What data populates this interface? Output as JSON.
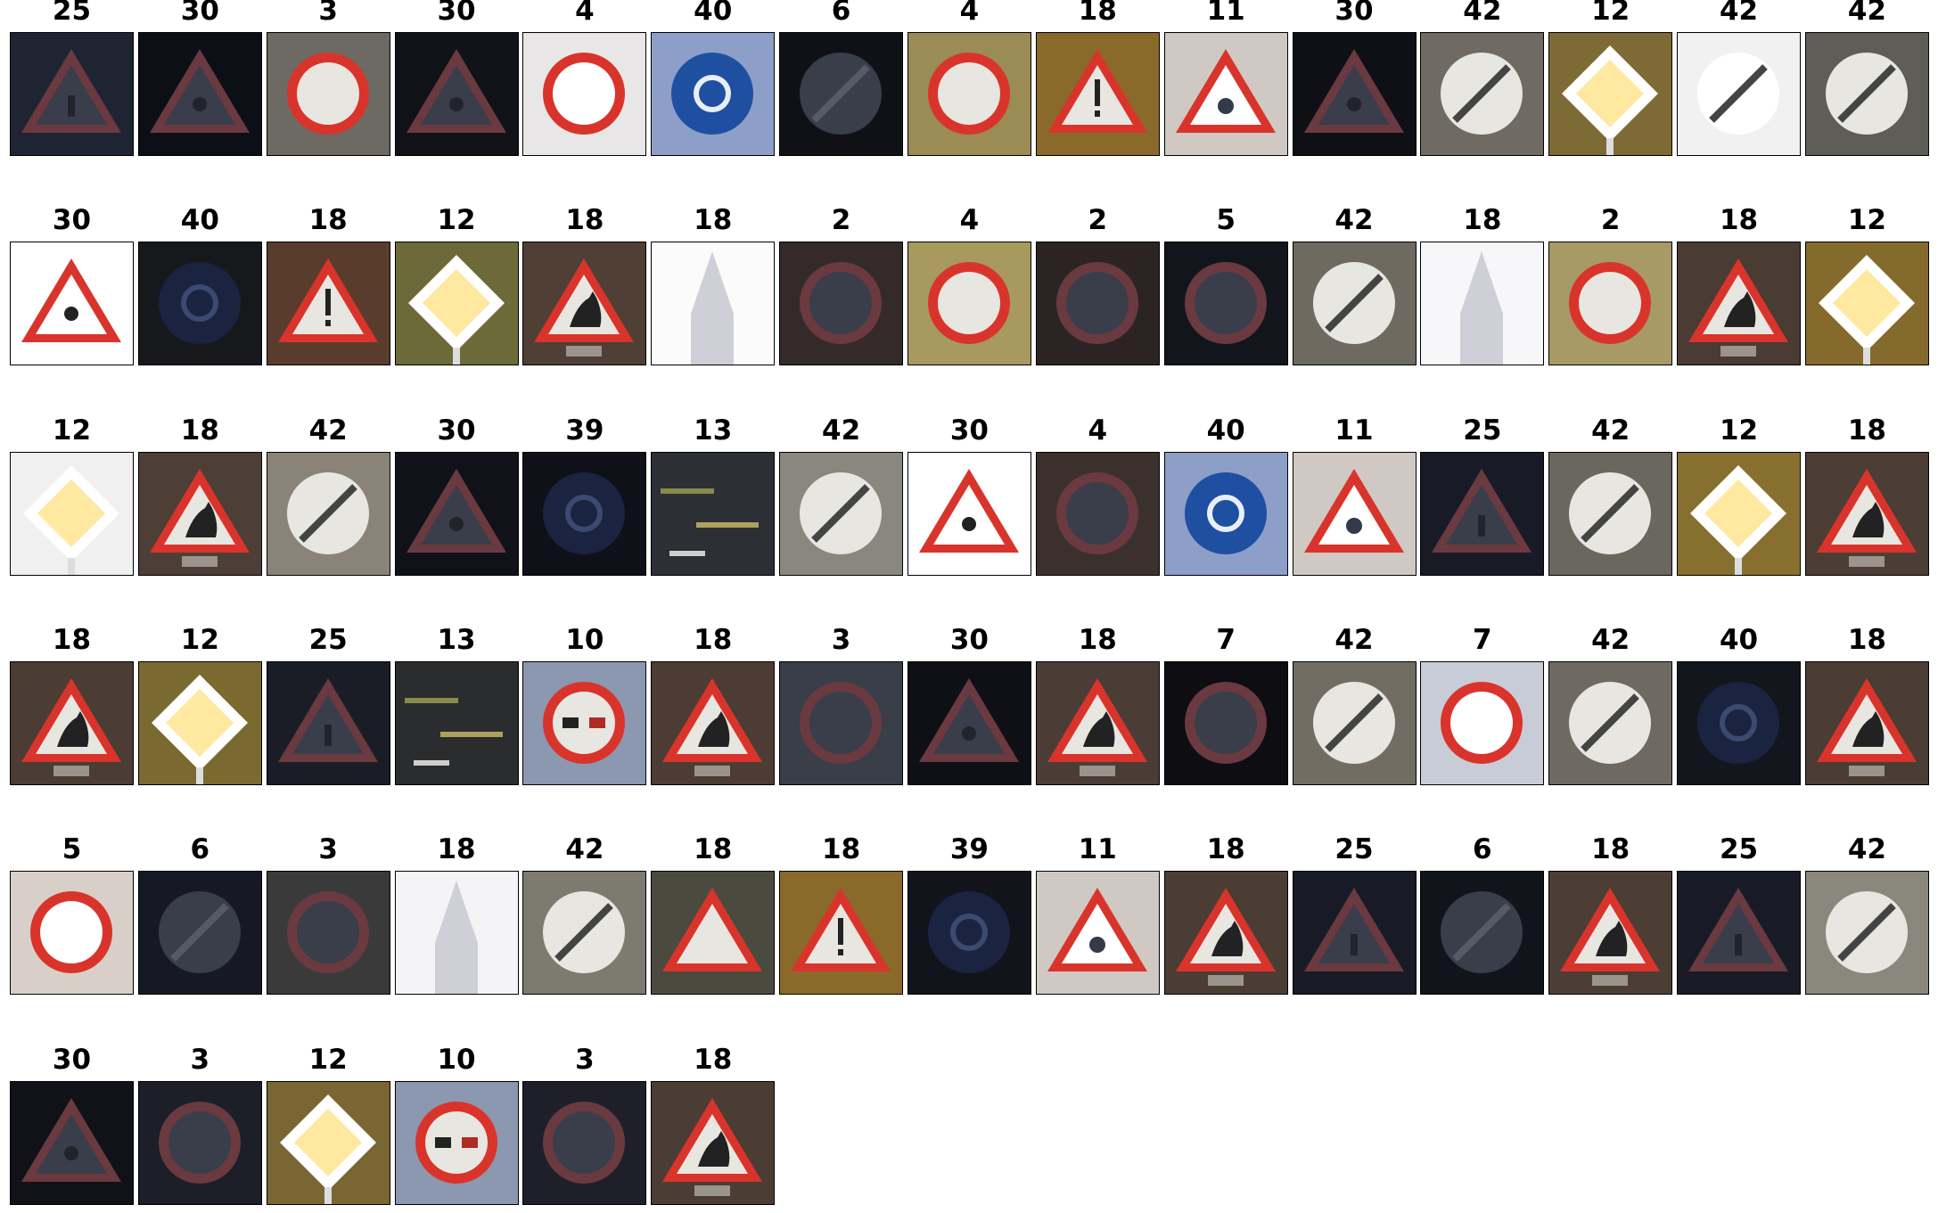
{
  "figure": {
    "rows": [
      [
        {
          "label": "25",
          "sign": "triangle",
          "bg": "#1f2433",
          "tone": "dark",
          "glyph": "worker"
        },
        {
          "label": "30",
          "sign": "triangle",
          "bg": "#0d0f16",
          "tone": "dark",
          "glyph": "snow"
        },
        {
          "label": "3",
          "sign": "round-red",
          "bg": "#6c6a63",
          "tone": "mid",
          "glyph": "60"
        },
        {
          "label": "30",
          "sign": "triangle",
          "bg": "#111218",
          "tone": "dark",
          "glyph": "snow"
        },
        {
          "label": "4",
          "sign": "round-red",
          "bg": "#e9e6e8",
          "tone": "light",
          "glyph": "70"
        },
        {
          "label": "40",
          "sign": "round-blue",
          "bg": "#8d9fc8",
          "tone": "mid",
          "glyph": "roundabout"
        },
        {
          "label": "6",
          "sign": "round-end",
          "bg": "#0f1116",
          "tone": "dark",
          "glyph": "end"
        },
        {
          "label": "4",
          "sign": "round-red",
          "bg": "#9b8b54",
          "tone": "mid",
          "glyph": "70"
        },
        {
          "label": "18",
          "sign": "triangle",
          "bg": "#8a6a2a",
          "tone": "mid",
          "glyph": "!"
        },
        {
          "label": "11",
          "sign": "triangle",
          "bg": "#cfc8c3",
          "tone": "light",
          "glyph": "priority"
        },
        {
          "label": "30",
          "sign": "triangle",
          "bg": "#0f1016",
          "tone": "dark",
          "glyph": "snow"
        },
        {
          "label": "42",
          "sign": "round-end",
          "bg": "#706b62",
          "tone": "mid",
          "glyph": "end-overtaking"
        },
        {
          "label": "12",
          "sign": "diamond",
          "bg": "#7d6a34",
          "tone": "mid",
          "glyph": ""
        },
        {
          "label": "42",
          "sign": "round-end",
          "bg": "#f1f1f1",
          "tone": "light",
          "glyph": "end-overtaking"
        },
        {
          "label": "42",
          "sign": "round-end",
          "bg": "#5f5d58",
          "tone": "mid",
          "glyph": "end-overtaking"
        }
      ],
      [
        {
          "label": "30",
          "sign": "triangle",
          "bg": "#ffffff",
          "tone": "light",
          "glyph": "snow"
        },
        {
          "label": "40",
          "sign": "round-blue",
          "bg": "#16181c",
          "tone": "dark",
          "glyph": "roundabout"
        },
        {
          "label": "18",
          "sign": "triangle",
          "bg": "#5a3c2c",
          "tone": "mid",
          "glyph": "!"
        },
        {
          "label": "12",
          "sign": "diamond",
          "bg": "#6d6a3a",
          "tone": "mid",
          "glyph": ""
        },
        {
          "label": "18",
          "sign": "triangle",
          "bg": "#4f3f35",
          "tone": "mid",
          "glyph": "animal"
        },
        {
          "label": "18",
          "sign": "post",
          "bg": "#fbfbfb",
          "tone": "light",
          "glyph": ""
        },
        {
          "label": "2",
          "sign": "round-red",
          "bg": "#352a2a",
          "tone": "dark",
          "glyph": "50"
        },
        {
          "label": "4",
          "sign": "round-red",
          "bg": "#a89a5f",
          "tone": "mid",
          "glyph": "70"
        },
        {
          "label": "2",
          "sign": "round-red",
          "bg": "#2c2424",
          "tone": "dark",
          "glyph": "50"
        },
        {
          "label": "5",
          "sign": "round-red",
          "bg": "#13151c",
          "tone": "dark",
          "glyph": "80"
        },
        {
          "label": "42",
          "sign": "round-end",
          "bg": "#6e6a60",
          "tone": "mid",
          "glyph": "end-overtaking"
        },
        {
          "label": "18",
          "sign": "post",
          "bg": "#f7f7f9",
          "tone": "light",
          "glyph": ""
        },
        {
          "label": "2",
          "sign": "round-red",
          "bg": "#a89a66",
          "tone": "mid",
          "glyph": "50"
        },
        {
          "label": "18",
          "sign": "triangle",
          "bg": "#4a3b33",
          "tone": "mid",
          "glyph": "animal"
        },
        {
          "label": "12",
          "sign": "diamond",
          "bg": "#846b2c",
          "tone": "mid",
          "glyph": ""
        }
      ],
      [
        {
          "label": "12",
          "sign": "diamond-side",
          "bg": "#f0f0f0",
          "tone": "light",
          "glyph": ""
        },
        {
          "label": "18",
          "sign": "triangle",
          "bg": "#4d3e36",
          "tone": "mid",
          "glyph": "animal"
        },
        {
          "label": "42",
          "sign": "round-end",
          "bg": "#8a8478",
          "tone": "mid",
          "glyph": "end-overtaking"
        },
        {
          "label": "30",
          "sign": "triangle",
          "bg": "#111219",
          "tone": "dark",
          "glyph": "snow"
        },
        {
          "label": "39",
          "sign": "round-blue",
          "bg": "#0f1018",
          "tone": "dark",
          "glyph": "keep-left"
        },
        {
          "label": "13",
          "sign": "streaks",
          "bg": "#2c2f33",
          "tone": "dark",
          "glyph": ""
        },
        {
          "label": "42",
          "sign": "round-end",
          "bg": "#8a877e",
          "tone": "mid",
          "glyph": "end-overtaking"
        },
        {
          "label": "30",
          "sign": "triangle",
          "bg": "#ffffff",
          "tone": "light",
          "glyph": "snow"
        },
        {
          "label": "4",
          "sign": "round-red",
          "bg": "#3c302c",
          "tone": "dark",
          "glyph": "70"
        },
        {
          "label": "40",
          "sign": "round-blue",
          "bg": "#8d9fc8",
          "tone": "mid",
          "glyph": "roundabout"
        },
        {
          "label": "11",
          "sign": "triangle",
          "bg": "#cfc8c3",
          "tone": "light",
          "glyph": "priority"
        },
        {
          "label": "25",
          "sign": "triangle",
          "bg": "#181b26",
          "tone": "dark",
          "glyph": "worker"
        },
        {
          "label": "42",
          "sign": "round-end",
          "bg": "#6a675e",
          "tone": "mid",
          "glyph": "end-overtaking"
        },
        {
          "label": "12",
          "sign": "diamond",
          "bg": "#87702f",
          "tone": "mid",
          "glyph": ""
        },
        {
          "label": "18",
          "sign": "triangle",
          "bg": "#4c3d35",
          "tone": "mid",
          "glyph": "animal"
        }
      ],
      [
        {
          "label": "18",
          "sign": "triangle",
          "bg": "#4b3c34",
          "tone": "mid",
          "glyph": "animal"
        },
        {
          "label": "12",
          "sign": "diamond",
          "bg": "#7a6a30",
          "tone": "mid",
          "glyph": ""
        },
        {
          "label": "25",
          "sign": "triangle",
          "bg": "#1b1d26",
          "tone": "dark",
          "glyph": "worker"
        },
        {
          "label": "13",
          "sign": "streaks",
          "bg": "#2a2c2d",
          "tone": "dark",
          "glyph": ""
        },
        {
          "label": "10",
          "sign": "round-red",
          "bg": "#8c97b0",
          "tone": "mid",
          "glyph": "no-overtaking"
        },
        {
          "label": "18",
          "sign": "triangle",
          "bg": "#4d3c33",
          "tone": "mid",
          "glyph": "animal"
        },
        {
          "label": "3",
          "sign": "round-red",
          "bg": "#3a3e48",
          "tone": "dark",
          "glyph": "60"
        },
        {
          "label": "30",
          "sign": "triangle",
          "bg": "#0f1016",
          "tone": "dark",
          "glyph": "snow"
        },
        {
          "label": "18",
          "sign": "triangle",
          "bg": "#4b3d35",
          "tone": "mid",
          "glyph": "animal"
        },
        {
          "label": "7",
          "sign": "round-red",
          "bg": "#0d0d12",
          "tone": "dark",
          "glyph": "100"
        },
        {
          "label": "42",
          "sign": "round-end",
          "bg": "#726d62",
          "tone": "mid",
          "glyph": "end-overtaking"
        },
        {
          "label": "7",
          "sign": "round-red",
          "bg": "#c8ccd6",
          "tone": "light",
          "glyph": "100"
        },
        {
          "label": "42",
          "sign": "round-end",
          "bg": "#6e6a61",
          "tone": "mid",
          "glyph": "end-overtaking"
        },
        {
          "label": "40",
          "sign": "round-blue",
          "bg": "#14161d",
          "tone": "dark",
          "glyph": "roundabout"
        },
        {
          "label": "18",
          "sign": "triangle",
          "bg": "#4b3c34",
          "tone": "mid",
          "glyph": "animal"
        }
      ],
      [
        {
          "label": "5",
          "sign": "round-red",
          "bg": "#d8d0c8",
          "tone": "light",
          "glyph": "80"
        },
        {
          "label": "6",
          "sign": "round-end",
          "bg": "#161923",
          "tone": "dark",
          "glyph": "end"
        },
        {
          "label": "3",
          "sign": "round-red",
          "bg": "#3b3a3a",
          "tone": "dark",
          "glyph": "60"
        },
        {
          "label": "18",
          "sign": "post",
          "bg": "#f4f4f6",
          "tone": "light",
          "glyph": ""
        },
        {
          "label": "42",
          "sign": "round-end",
          "bg": "#7d7a70",
          "tone": "mid",
          "glyph": "end-overtaking"
        },
        {
          "label": "18",
          "sign": "triangle",
          "bg": "#4b4a3e",
          "tone": "mid",
          "glyph": ""
        },
        {
          "label": "18",
          "sign": "triangle",
          "bg": "#8a6a2a",
          "tone": "mid",
          "glyph": "!"
        },
        {
          "label": "39",
          "sign": "round-blue",
          "bg": "#12131b",
          "tone": "dark",
          "glyph": "keep-left"
        },
        {
          "label": "11",
          "sign": "triangle",
          "bg": "#d0c9c3",
          "tone": "light",
          "glyph": "priority"
        },
        {
          "label": "18",
          "sign": "triangle",
          "bg": "#4b3c34",
          "tone": "mid",
          "glyph": "animal"
        },
        {
          "label": "25",
          "sign": "triangle",
          "bg": "#181b25",
          "tone": "dark",
          "glyph": "worker"
        },
        {
          "label": "6",
          "sign": "round-end",
          "bg": "#12141b",
          "tone": "dark",
          "glyph": "end"
        },
        {
          "label": "18",
          "sign": "triangle",
          "bg": "#4c3d35",
          "tone": "mid",
          "glyph": "animal"
        },
        {
          "label": "25",
          "sign": "triangle",
          "bg": "#181b26",
          "tone": "dark",
          "glyph": "worker"
        },
        {
          "label": "42",
          "sign": "round-end",
          "bg": "#8a877c",
          "tone": "mid",
          "glyph": "end-overtaking"
        }
      ],
      [
        {
          "label": "30",
          "sign": "triangle",
          "bg": "#111218",
          "tone": "dark",
          "glyph": "snow"
        },
        {
          "label": "3",
          "sign": "round-red",
          "bg": "#1c1e28",
          "tone": "dark",
          "glyph": "60"
        },
        {
          "label": "12",
          "sign": "diamond",
          "bg": "#7a6632",
          "tone": "mid",
          "glyph": ""
        },
        {
          "label": "10",
          "sign": "round-red",
          "bg": "#8c97b0",
          "tone": "mid",
          "glyph": "no-overtaking"
        },
        {
          "label": "3",
          "sign": "round-red",
          "bg": "#1e1f29",
          "tone": "dark",
          "glyph": "60"
        },
        {
          "label": "18",
          "sign": "triangle",
          "bg": "#4b3c34",
          "tone": "mid",
          "glyph": "animal"
        }
      ]
    ]
  }
}
